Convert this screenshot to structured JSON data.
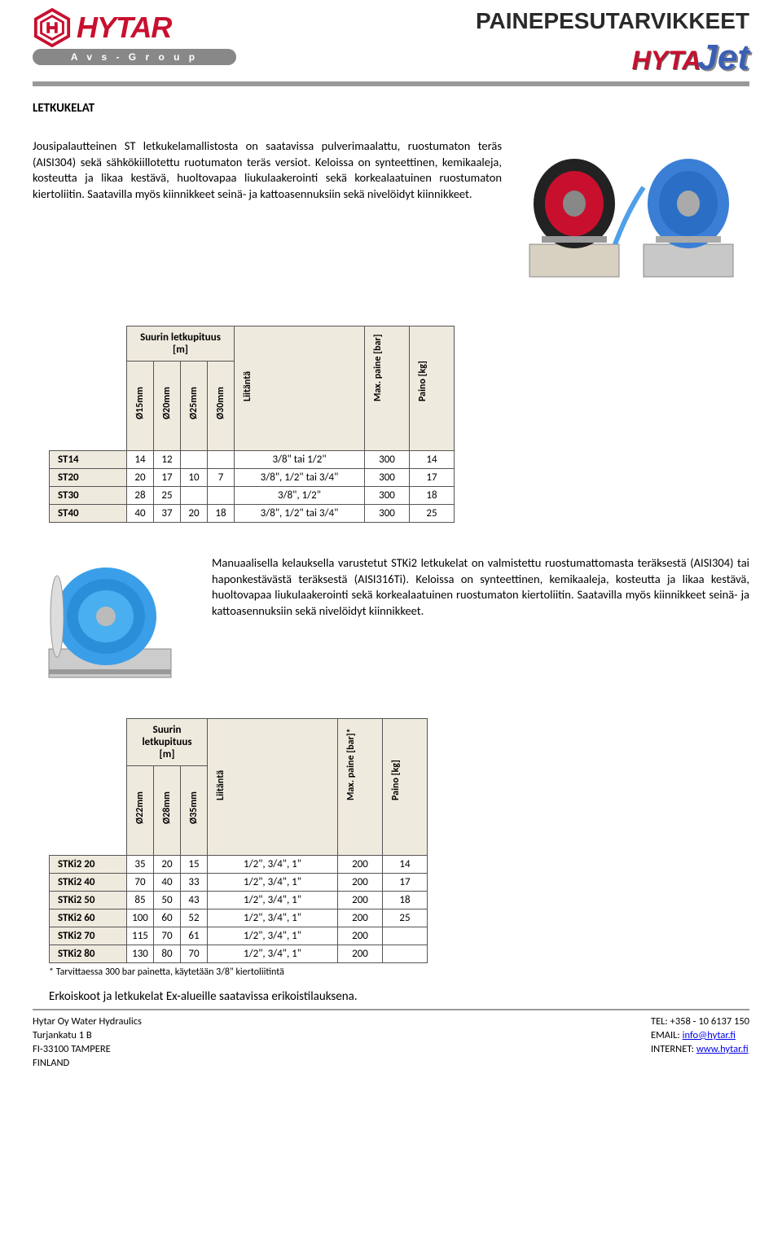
{
  "header": {
    "brand": "HYTAR",
    "subbrand": "A v s - G r o u p",
    "page_title": "PAINEPESUTARVIKKEET",
    "product_line_a": "HYTA",
    "product_line_b": "Jet"
  },
  "section1": {
    "title": "LETKUKELAT",
    "intro": "Jousipalautteinen ST letkukelamallistosta on saatavissa pulverimaalattu, ruostumaton teräs (AISI304) sekä sähkökiillotettu ruotumaton teräs versiot. Keloissa on synteettinen, kemikaaleja, kosteutta ja likaa kestävä, huoltovapaa liukulaakerointi sekä korkealaatuinen ruostumaton kiertoliitin. Saatavilla myös kiinnikkeet seinä- ja kattoasennuksiin sekä nivelöidyt kiinnikkeet."
  },
  "table1": {
    "group_header": "Suurin letkupituus [m]",
    "col_headers": [
      "Ø15mm",
      "Ø20mm",
      "Ø25mm",
      "Ø30mm",
      "Liitäntä",
      "Max. paine [bar]",
      "Paino [kg]"
    ],
    "rows": [
      {
        "label": "ST14",
        "cells": [
          "14",
          "12",
          "",
          "",
          "3/8\" tai 1/2\"",
          "300",
          "14"
        ]
      },
      {
        "label": "ST20",
        "cells": [
          "20",
          "17",
          "10",
          "7",
          "3/8\", 1/2\" tai 3/4\"",
          "300",
          "17"
        ]
      },
      {
        "label": "ST30",
        "cells": [
          "28",
          "25",
          "",
          "",
          "3/8\", 1/2\"",
          "300",
          "18"
        ]
      },
      {
        "label": "ST40",
        "cells": [
          "40",
          "37",
          "20",
          "18",
          "3/8\", 1/2\" tai 3/4\"",
          "300",
          "25"
        ]
      }
    ]
  },
  "section2": {
    "intro": "Manuaalisella kelauksella varustetut STKi2 letkukelat on valmistettu ruostumattomasta teräksestä (AISI304) tai haponkestävästä teräksestä (AISI316Ti). Keloissa on synteettinen, kemikaaleja, kosteutta ja likaa kestävä, huoltovapaa liukulaakerointi sekä korkealaatuinen ruostumaton kiertoliitin. Saatavilla myös kiinnikkeet seinä- ja kattoasennuksiin sekä nivelöidyt kiinnikkeet."
  },
  "table2": {
    "group_header": "Suurin letkupituus [m]",
    "col_headers": [
      "Ø22mm",
      "Ø28mm",
      "Ø35mm",
      "Liitäntä",
      "Max. paine [bar]*",
      "Paino [kg]"
    ],
    "rows": [
      {
        "label": "STKi2 20",
        "cells": [
          "35",
          "20",
          "15",
          "1/2\", 3/4\", 1\"",
          "200",
          "14"
        ]
      },
      {
        "label": "STKi2 40",
        "cells": [
          "70",
          "40",
          "33",
          "1/2\", 3/4\", 1\"",
          "200",
          "17"
        ]
      },
      {
        "label": "STKi2 50",
        "cells": [
          "85",
          "50",
          "43",
          "1/2\", 3/4\", 1\"",
          "200",
          "18"
        ]
      },
      {
        "label": "STKi2 60",
        "cells": [
          "100",
          "60",
          "52",
          "1/2\", 3/4\", 1\"",
          "200",
          "25"
        ]
      },
      {
        "label": "STKi2 70",
        "cells": [
          "115",
          "70",
          "61",
          "1/2\", 3/4\", 1\"",
          "200",
          ""
        ]
      },
      {
        "label": "STKi2 80",
        "cells": [
          "130",
          "80",
          "70",
          "1/2\", 3/4\", 1\"",
          "200",
          ""
        ]
      }
    ],
    "footnote": "* Tarvittaessa 300 bar painetta, käytetään 3/8\" kiertoliitintä"
  },
  "bottom_note": "Erkoiskoot ja letkukelat Ex-alueille saatavissa erikoistilauksena.",
  "footer": {
    "company": "Hytar Oy Water Hydraulics",
    "addr1": "Turjankatu 1 B",
    "addr2": "FI-33100 TAMPERE",
    "addr3": "FINLAND",
    "tel_label": "TEL:",
    "tel": "+358 - 10 6137 150",
    "email_label": "EMAIL:",
    "email": "info@hytar.fi",
    "web_label": "INTERNET:",
    "web": "www.hytar.fi"
  },
  "colors": {
    "brand_red": "#c8102e",
    "brand_blue": "#3a5fb5",
    "table_bg": "#efeade",
    "divider": "#999999"
  }
}
